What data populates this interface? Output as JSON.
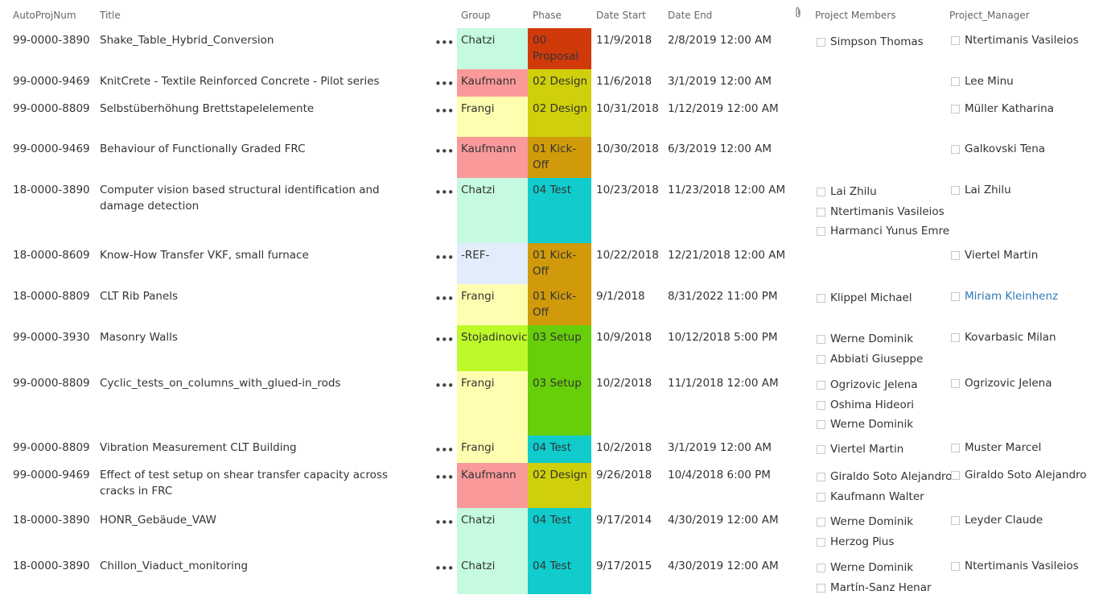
{
  "columns": {
    "num": "AutoProjNum",
    "title": "Title",
    "group": "Group",
    "phase": "Phase",
    "date_start": "Date Start",
    "date_end": "Date End",
    "attachment_icon": "paperclip-icon",
    "members": "Project Members",
    "manager": "Project_Manager"
  },
  "more_glyph": "•••",
  "group_colors": {
    "Chatzi": "#c6fae0",
    "Kaufmann": "#f9999a",
    "Frangi": "#fffeb0",
    "-REF-": "#e2ecfb",
    "Stojadinovic": "#bef92a"
  },
  "phase_colors": {
    "00 Proposal": "#d03a0a",
    "02 Design": "#cfcf0b",
    "01 Kick-Off": "#d09a0b",
    "04 Test": "#10cccc",
    "03 Setup": "#66cf0a"
  },
  "rows": [
    {
      "num": "99-0000-3890",
      "title": "Shake_Table_Hybrid_Conversion",
      "group": "Chatzi",
      "phase": "00 Proposal",
      "start": "11/9/2018",
      "end": "2/8/2019 12:00 AM",
      "members": [
        "Simpson Thomas"
      ],
      "manager": "Ntertimanis Vasileios"
    },
    {
      "num": "99-0000-9469",
      "title": "KnitCrete - Textile Reinforced Concrete - Pilot series",
      "group": "Kaufmann",
      "phase": "02 Design",
      "start": "11/6/2018",
      "end": "3/1/2019 12:00 AM",
      "members": [],
      "manager": "Lee Minu"
    },
    {
      "num": "99-0000-8809",
      "title": "Selbstüberhöhung Brettstapelelemente",
      "group": "Frangi",
      "phase": "02 Design",
      "start": "10/31/2018",
      "end": "1/12/2019 12:00 AM",
      "members": [],
      "manager": "Müller Katharina"
    },
    {
      "num": "99-0000-9469",
      "title": "Behaviour of Functionally Graded FRC",
      "group": "Kaufmann",
      "phase": "01 Kick-Off",
      "start": "10/30/2018",
      "end": "6/3/2019 12:00 AM",
      "members": [],
      "manager": "Galkovski Tena"
    },
    {
      "num": "18-0000-3890",
      "title": "Computer vision based structural identification and damage detection",
      "group": "Chatzi",
      "phase": "04 Test",
      "start": "10/23/2018",
      "end": "11/23/2018 12:00 AM",
      "members": [
        "Lai Zhilu",
        "Ntertimanis Vasileios",
        "Harmanci Yunus Emre"
      ],
      "manager": "Lai Zhilu"
    },
    {
      "num": "18-0000-8609",
      "title": "Know-How Transfer VKF, small furnace",
      "group": "-REF-",
      "phase": "01 Kick-Off",
      "start": "10/22/2018",
      "end": "12/21/2018 12:00 AM",
      "members": [],
      "manager": "Viertel Martin"
    },
    {
      "num": "18-0000-8809",
      "title": "CLT Rib Panels",
      "group": "Frangi",
      "phase": "01 Kick-Off",
      "start": "9/1/2018",
      "end": "8/31/2022 11:00 PM",
      "members": [
        "Klippel Michael"
      ],
      "manager": "Miriam Kleinhenz",
      "manager_link": true
    },
    {
      "num": "99-0000-3930",
      "title": "Masonry Walls",
      "group": "Stojadinovic",
      "phase": "03 Setup",
      "start": "10/9/2018",
      "end": "10/12/2018 5:00 PM",
      "members": [
        "Werne Dominik",
        "Abbiati Giuseppe"
      ],
      "manager": "Kovarbasic Milan"
    },
    {
      "num": "99-0000-8809",
      "title": "Cyclic_tests_on_columns_with_glued-in_rods",
      "group": "Frangi",
      "phase": "03 Setup",
      "start": "10/2/2018",
      "end": "11/1/2018 12:00 AM",
      "members": [
        "Ogrizovic Jelena",
        "Oshima Hideori",
        "Werne Dominik"
      ],
      "manager": "Ogrizovic Jelena"
    },
    {
      "num": "99-0000-8809",
      "title": "Vibration Measurement CLT Building",
      "group": "Frangi",
      "phase": "04 Test",
      "start": "10/2/2018",
      "end": "3/1/2019 12:00 AM",
      "members": [
        "Viertel Martin"
      ],
      "manager": "Muster Marcel"
    },
    {
      "num": "99-0000-9469",
      "title": "Effect of test setup on shear transfer capacity across cracks in FRC",
      "group": "Kaufmann",
      "phase": "02 Design",
      "start": "9/26/2018",
      "end": "10/4/2018 6:00 PM",
      "members": [
        "Giraldo Soto Alejandro",
        "Kaufmann Walter"
      ],
      "manager": "Giraldo Soto Alejandro"
    },
    {
      "num": "18-0000-3890",
      "title": "HONR_Gebäude_VAW",
      "group": "Chatzi",
      "phase": "04 Test",
      "start": "9/17/2014",
      "end": "4/30/2019 12:00 AM",
      "members": [
        "Werne Dominik",
        "Herzog Pius"
      ],
      "manager": "Leyder Claude"
    },
    {
      "num": "18-0000-3890",
      "title": "Chillon_Viaduct_monitoring",
      "group": "Chatzi",
      "phase": "04 Test",
      "start": "9/17/2015",
      "end": "4/30/2019 12:00 AM",
      "members": [
        "Werne Dominik",
        "Martín-Sanz Henar"
      ],
      "manager": "Ntertimanis Vasileios"
    }
  ]
}
